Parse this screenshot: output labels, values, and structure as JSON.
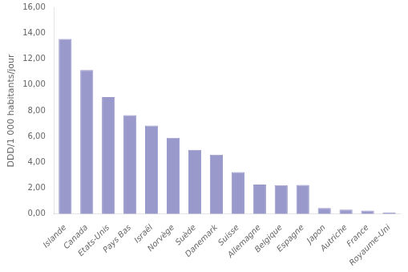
{
  "chart_data": {
    "type": "bar",
    "categories": [
      "Islande",
      "Canada",
      "Etats-Unis",
      "Pays Bas",
      "Israël",
      "Norvège",
      "Suède",
      "Danemark",
      "Suisse",
      "Allemagne",
      "Belgique",
      "Espagne",
      "Japon",
      "Autriche",
      "France",
      "Royaume-Uni"
    ],
    "values": [
      13.55,
      11.15,
      9.05,
      7.65,
      6.85,
      5.9,
      4.97,
      4.6,
      3.25,
      2.28,
      2.24,
      2.26,
      0.47,
      0.35,
      0.27,
      0.13
    ],
    "color": "#9999CC",
    "ylabel": "DDD/1 000 habitants/jour",
    "ylim": [
      0,
      16.0
    ],
    "yticks": [
      {
        "value": 0.0,
        "label": "0,00"
      },
      {
        "value": 2.0,
        "label": "2,00"
      },
      {
        "value": 4.0,
        "label": "4,00"
      },
      {
        "value": 6.0,
        "label": "6,00"
      },
      {
        "value": 8.0,
        "label": "8,00"
      },
      {
        "value": 10.0,
        "label": "10,00"
      },
      {
        "value": 12.0,
        "label": "12,00"
      },
      {
        "value": 14.0,
        "label": "14,00"
      },
      {
        "value": 16.0,
        "label": "16,00"
      }
    ],
    "grid": false
  }
}
